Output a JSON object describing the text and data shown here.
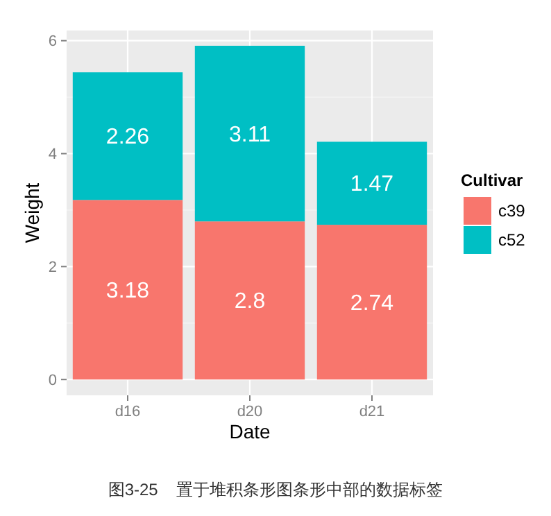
{
  "chart_data": {
    "type": "bar",
    "stacked": true,
    "xlabel": "Date",
    "ylabel": "Weight",
    "legend_title": "Cultivar",
    "categories": [
      "d16",
      "d20",
      "d21"
    ],
    "series": [
      {
        "name": "c39",
        "color": "#f8766d",
        "values": [
          3.18,
          2.8,
          2.74
        ]
      },
      {
        "name": "c52",
        "color": "#00bfc4",
        "values": [
          2.26,
          3.11,
          1.47
        ]
      }
    ],
    "ylim": [
      -0.28,
      6.18
    ],
    "yticks": [
      0,
      2,
      4,
      6
    ],
    "grid": true,
    "legend": "right",
    "data_labels": true,
    "annotations": [
      "图3-25    置于堆积条形图条形中部的数据标签"
    ]
  }
}
